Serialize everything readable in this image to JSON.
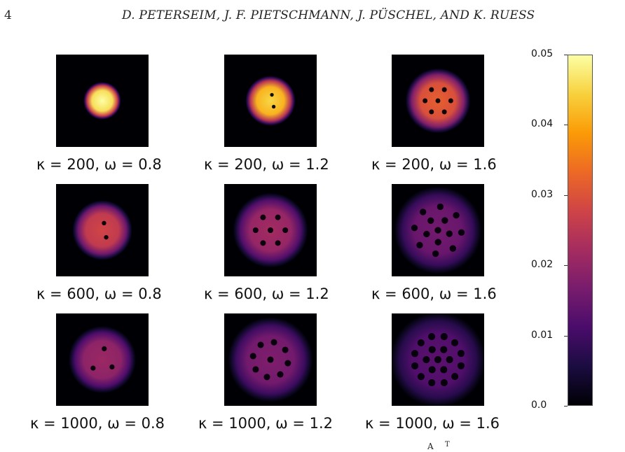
{
  "header": {
    "page_number": "4",
    "running_head": "D. PETERSEIM, J. F. PIETSCHMANN, J. PÜSCHEL, AND K. RUESS"
  },
  "colormap": {
    "name": "inferno",
    "stops": [
      "#000004",
      "#1b0c41",
      "#4a0c6b",
      "#781c6d",
      "#a52c60",
      "#cf4446",
      "#ed6925",
      "#fb9b06",
      "#f7d13d",
      "#fcffa4"
    ]
  },
  "figure": {
    "panels": [
      {
        "id": "k200-w08",
        "caption": "κ = 200, ω = 0.8",
        "kappa": 200,
        "omega": 0.8,
        "blob_radius": 0.15,
        "peak": 0.05,
        "vortices": 0
      },
      {
        "id": "k200-w12",
        "caption": "κ = 200, ω = 1.2",
        "kappa": 200,
        "omega": 1.2,
        "blob_radius": 0.2,
        "peak": 0.045,
        "vortices": 2
      },
      {
        "id": "k200-w16",
        "caption": "κ = 200, ω = 1.6",
        "kappa": 200,
        "omega": 1.6,
        "blob_radius": 0.26,
        "peak": 0.032,
        "vortices": 7
      },
      {
        "id": "k600-w08",
        "caption": "κ = 600, ω = 0.8",
        "kappa": 600,
        "omega": 0.8,
        "blob_radius": 0.24,
        "peak": 0.028,
        "vortices": 2
      },
      {
        "id": "k600-w12",
        "caption": "κ = 600, ω = 1.2",
        "kappa": 600,
        "omega": 1.2,
        "blob_radius": 0.3,
        "peak": 0.022,
        "vortices": 7
      },
      {
        "id": "k600-w16",
        "caption": "κ = 600, ω = 1.6",
        "kappa": 600,
        "omega": 1.6,
        "blob_radius": 0.35,
        "peak": 0.016,
        "vortices": 14
      },
      {
        "id": "k1000-w08",
        "caption": "κ = 1000, ω = 0.8",
        "kappa": 1000,
        "omega": 0.8,
        "blob_radius": 0.27,
        "peak": 0.021,
        "vortices": 3
      },
      {
        "id": "k1000-w12",
        "caption": "κ = 1000, ω = 1.2",
        "kappa": 1000,
        "omega": 1.2,
        "blob_radius": 0.34,
        "peak": 0.0175,
        "vortices": 9
      },
      {
        "id": "k1000-w16",
        "caption": "κ = 1000, ω = 1.6",
        "kappa": 1000,
        "omega": 1.6,
        "blob_radius": 0.38,
        "peak": 0.013,
        "vortices": 19
      }
    ],
    "colorbar": {
      "min": 0.0,
      "max": 0.05,
      "ticks": [
        "0.0",
        "0.01",
        "0.02",
        "0.03",
        "0.04",
        "0.05"
      ]
    }
  }
}
